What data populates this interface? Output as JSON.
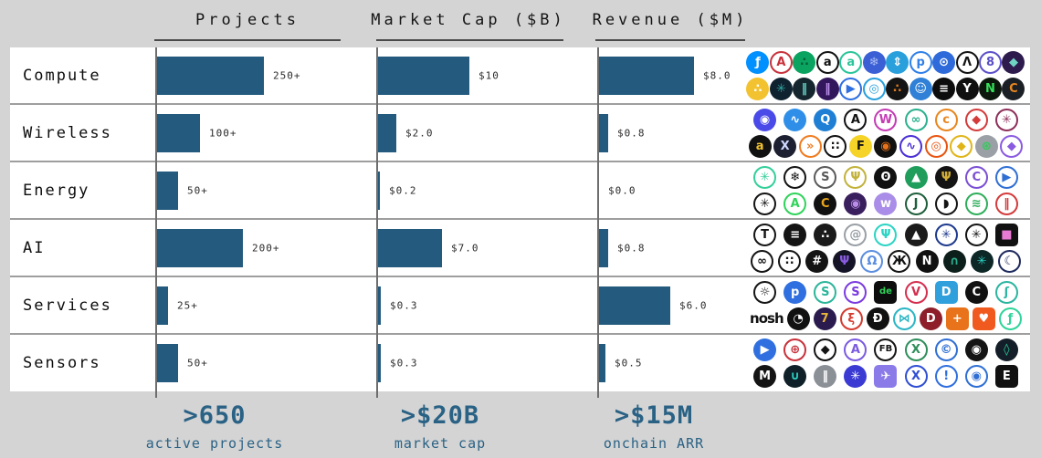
{
  "header": {
    "columns": [
      {
        "label": "Projects"
      },
      {
        "label": "Market Cap ($B)"
      },
      {
        "label": "Revenue ($M)"
      }
    ]
  },
  "chart_data": {
    "type": "bar",
    "orientation": "horizontal",
    "categories": [
      "Compute",
      "Wireless",
      "Energy",
      "AI",
      "Services",
      "Sensors"
    ],
    "series": [
      {
        "name": "Projects",
        "axis_max": 250,
        "values": [
          250,
          100,
          50,
          200,
          25,
          50
        ],
        "value_labels": [
          "250+",
          "100+",
          "50+",
          "200+",
          "25+",
          "50+"
        ]
      },
      {
        "name": "Market Cap ($B)",
        "axis_max": 10,
        "values": [
          10,
          2.0,
          0.2,
          7.0,
          0.3,
          0.3
        ],
        "value_labels": [
          "$10",
          "$2.0",
          "$0.2",
          "$7.0",
          "$0.3",
          "$0.3"
        ]
      },
      {
        "name": "Revenue ($M)",
        "axis_max": 8,
        "values": [
          8.0,
          0.8,
          0.0,
          0.8,
          6.0,
          0.5
        ],
        "value_labels": [
          "$8.0",
          "$0.8",
          "$0.0",
          "$0.8",
          "$6.0",
          "$0.5"
        ]
      }
    ],
    "legend": "none",
    "grid": "column-axis-lines"
  },
  "footer": {
    "stats": [
      {
        "value": ">650",
        "label": "active projects"
      },
      {
        "value": ">$20B",
        "label": "market cap"
      },
      {
        "value": ">$15M",
        "label": "onchain ARR"
      }
    ]
  },
  "colors": {
    "background": "#d4d4d4",
    "row_background": "#ffffff",
    "bar_fill": "#235a7d",
    "stat_text": "#2a6285",
    "header_text": "#141414",
    "grid_line": "#6e6e6e",
    "row_separator": "#9e9e9e"
  },
  "logos": {
    "Compute": [
      [
        {
          "n": "filecoin",
          "g": "ƒ",
          "b": "#0090ff",
          "f": "#ffffff"
        },
        {
          "n": "akash",
          "g": "A",
          "b": "#ffffff",
          "f": "#c8313a"
        },
        {
          "n": "dot-grid-green",
          "g": "∴",
          "b": "#0ba360",
          "f": "#065c38"
        },
        {
          "n": "arweave",
          "g": "a",
          "b": "#ffffff",
          "f": "#111111"
        },
        {
          "n": "aleph",
          "g": "a",
          "b": "#ffffff",
          "f": "#29c49a"
        },
        {
          "n": "node-mesh",
          "g": "❄",
          "b": "#3b5fd4",
          "f": "#aabdf5"
        },
        {
          "n": "elevator",
          "g": "⇕",
          "b": "#29a0dc",
          "f": "#ffffff"
        },
        {
          "n": "p-network",
          "g": "p",
          "b": "#ffffff",
          "f": "#2f7fe8"
        },
        {
          "n": "hex-network",
          "g": "⊙",
          "b": "#2e6ada",
          "f": "#ffffff"
        },
        {
          "n": "lambda",
          "g": "Λ",
          "b": "#ffffff",
          "f": "#111111"
        },
        {
          "n": "golem",
          "g": "8",
          "b": "#ffffff",
          "f": "#5b4fc8"
        },
        {
          "n": "hexagon-purple",
          "g": "◆",
          "b": "#2d1b4e",
          "f": "#6fd4c4"
        }
      ],
      [
        {
          "n": "honeycomb",
          "g": "∴",
          "b": "#f2c230",
          "f": "#ffffff"
        },
        {
          "n": "teal-mandala",
          "g": "✳",
          "b": "#0f2230",
          "f": "#2da8a0"
        },
        {
          "n": "dark-pillars",
          "g": "‖",
          "b": "#16262e",
          "f": "#63cfc0"
        },
        {
          "n": "purple-columns",
          "g": "‖",
          "b": "#33175c",
          "f": "#b98de8"
        },
        {
          "n": "blue-swoosh",
          "g": "▶",
          "b": "#ffffff",
          "f": "#2f6fe0"
        },
        {
          "n": "blue-ring",
          "g": "◎",
          "b": "#ffffff",
          "f": "#29a0dc"
        },
        {
          "n": "orange-cluster",
          "g": "∴",
          "b": "#141414",
          "f": "#e07b1f"
        },
        {
          "n": "smiley",
          "g": "☺",
          "b": "#2f80d6",
          "f": "#ffffff"
        },
        {
          "n": "black-bars",
          "g": "≡",
          "b": "#0d0d0d",
          "f": "#ffffff"
        },
        {
          "n": "fox",
          "g": "Y",
          "b": "#101010",
          "f": "#ffffff"
        },
        {
          "n": "green-n",
          "g": "N",
          "b": "#0d180d",
          "f": "#35e05a"
        },
        {
          "n": "orange-c",
          "g": "C",
          "b": "#1b1f26",
          "f": "#e8861f"
        }
      ]
    ],
    "Wireless": [
      [
        {
          "n": "helium",
          "g": "◉",
          "b": "#4a4ae8",
          "f": "#ffffff"
        },
        {
          "n": "wifi-blue",
          "g": "∿",
          "b": "#2f8fe8",
          "f": "#ffffff"
        },
        {
          "n": "q-ring",
          "g": "Q",
          "b": "#1f7fd4",
          "f": "#ffffff"
        },
        {
          "n": "black-a",
          "g": "A",
          "b": "#ffffff",
          "f": "#111111"
        },
        {
          "n": "gradient-w",
          "g": "W",
          "b": "#ffffff",
          "f": "#c43bb4"
        },
        {
          "n": "teal-loops",
          "g": "∞",
          "b": "#ffffff",
          "f": "#2bb08e"
        },
        {
          "n": "wifi-orange-c",
          "g": "c",
          "b": "#ffffff",
          "f": "#e8861f"
        },
        {
          "n": "color-cubes",
          "g": "◆",
          "b": "#ffffff",
          "f": "#d43b3b"
        },
        {
          "n": "maroon-weave",
          "g": "✳",
          "b": "#ffffff",
          "f": "#8e2f5a"
        }
      ],
      [
        {
          "n": "paren-a",
          "g": "a",
          "b": "#111111",
          "f": "#f2c230"
        },
        {
          "n": "x-dark",
          "g": "X",
          "b": "#1d2030",
          "f": "#cfd8ff"
        },
        {
          "n": "orange-chevrons",
          "g": "»",
          "b": "#ffffff",
          "f": "#f07b1f"
        },
        {
          "n": "dot-matrix",
          "g": "∷",
          "b": "#ffffff",
          "f": "#111111"
        },
        {
          "n": "f-yellow",
          "g": "F",
          "b": "#f5d327",
          "f": "#111111"
        },
        {
          "n": "disc-orange",
          "g": "◉",
          "b": "#111111",
          "f": "#e8731a"
        },
        {
          "n": "purple-beacon",
          "g": "∿",
          "b": "#ffffff",
          "f": "#4a2fd4"
        },
        {
          "n": "orange-spiral",
          "g": "◎",
          "b": "#ffffff",
          "f": "#e8540f"
        },
        {
          "n": "gold-diamond",
          "g": "◆",
          "b": "#ffffff",
          "f": "#e0b51a"
        },
        {
          "n": "hex-shield",
          "g": "⊛",
          "b": "#9aa0a6",
          "f": "#35c85a"
        },
        {
          "n": "purple-cube",
          "g": "◆",
          "b": "#ffffff",
          "f": "#8a5be0"
        }
      ]
    ],
    "Energy": [
      [
        {
          "n": "green-bloom",
          "g": "✳",
          "b": "#ffffff",
          "f": "#35cf9a"
        },
        {
          "n": "black-mandala",
          "g": "❄",
          "b": "#ffffff",
          "f": "#141414"
        },
        {
          "n": "s-coin",
          "g": "S",
          "b": "#ffffff",
          "f": "#5a5a5a"
        },
        {
          "n": "tree-ring",
          "g": "Ψ",
          "b": "#ffffff",
          "f": "#c2b23b"
        },
        {
          "n": "power-button",
          "g": "ʘ",
          "b": "#111111",
          "f": "#ffffff"
        },
        {
          "n": "green-peak",
          "g": "▲",
          "b": "#1e9e5a",
          "f": "#ffffff"
        },
        {
          "n": "gold-sprout",
          "g": "Ψ",
          "b": "#141414",
          "f": "#d4af37"
        },
        {
          "n": "purple-c",
          "g": "C",
          "b": "#ffffff",
          "f": "#7a4fd4"
        },
        {
          "n": "blue-bird",
          "g": "▶",
          "b": "#ffffff",
          "f": "#2f6fd4"
        }
      ],
      [
        {
          "n": "black-asterisk",
          "g": "✳",
          "b": "#ffffff",
          "f": "#141414"
        },
        {
          "n": "green-a",
          "g": "A",
          "b": "#ffffff",
          "f": "#2fd45a"
        },
        {
          "n": "spectrum-c",
          "g": "C",
          "b": "#111111",
          "f": "#e8a51a"
        },
        {
          "n": "violet-orb",
          "g": "◉",
          "b": "#3a1f5e",
          "f": "#b98de8"
        },
        {
          "n": "lilac-w",
          "g": "w",
          "b": "#a98de8",
          "f": "#ffffff"
        },
        {
          "n": "green-j",
          "g": "J",
          "b": "#ffffff",
          "f": "#1e5e3a"
        },
        {
          "n": "toucan",
          "g": "◗",
          "b": "#ffffff",
          "f": "#141414"
        },
        {
          "n": "green-lattice",
          "g": "≋",
          "b": "#ffffff",
          "f": "#2fae5a"
        },
        {
          "n": "red-waveform",
          "g": "‖",
          "b": "#ffffff",
          "f": "#d43b3b"
        }
      ]
    ],
    "AI": [
      [
        {
          "n": "t-serif",
          "g": "T",
          "b": "#ffffff",
          "f": "#141414"
        },
        {
          "n": "hex-stack",
          "g": "≡",
          "b": "#141414",
          "f": "#ffffff"
        },
        {
          "n": "dot-sphere",
          "g": "∴",
          "b": "#1b1b1b",
          "f": "#ffffff"
        },
        {
          "n": "gray-swirl",
          "g": "@",
          "b": "#ffffff",
          "f": "#9aa0a6"
        },
        {
          "n": "teal-brain",
          "g": "Ψ",
          "b": "#ffffff",
          "f": "#2bd4c4"
        },
        {
          "n": "hex-ascend",
          "g": "▲",
          "b": "#1b1b1b",
          "f": "#ffffff"
        },
        {
          "n": "weave-sphere",
          "g": "✳",
          "b": "#ffffff",
          "f": "#1e3a8e"
        },
        {
          "n": "spoke-asterisk",
          "g": "✳",
          "b": "#ffffff",
          "f": "#141414"
        },
        {
          "n": "pixel-bot",
          "g": "■",
          "b": "#111111",
          "f": "#e87bd4",
          "s": "sq"
        }
      ],
      [
        {
          "n": "endless-knot",
          "g": "∞",
          "b": "#ffffff",
          "f": "#141414"
        },
        {
          "n": "dot-diamond",
          "g": "∷",
          "b": "#ffffff",
          "f": "#141414"
        },
        {
          "n": "maze-hex",
          "g": "#",
          "b": "#141414",
          "f": "#ffffff"
        },
        {
          "n": "violet-brain",
          "g": "Ψ",
          "b": "#141426",
          "f": "#8a5be0"
        },
        {
          "n": "brain-outline",
          "g": "Ω",
          "b": "#ffffff",
          "f": "#5b8de0"
        },
        {
          "n": "wings",
          "g": "Ж",
          "b": "#ffffff",
          "f": "#141414"
        },
        {
          "n": "nous",
          "g": "N",
          "b": "#111111",
          "f": "#ffffff"
        },
        {
          "n": "green-hat",
          "g": "∩",
          "b": "#0d1f1a",
          "f": "#2bae8e"
        },
        {
          "n": "teal-shutter",
          "g": "✳",
          "b": "#0d2626",
          "f": "#2bd4c4"
        },
        {
          "n": "crescent",
          "g": "☾",
          "b": "#ffffff",
          "f": "#1e2a5e"
        }
      ]
    ],
    "Services": [
      [
        {
          "n": "sun-gear",
          "g": "☼",
          "b": "#ffffff",
          "f": "#141414"
        },
        {
          "n": "p-coin",
          "g": "p",
          "b": "#2f6fe0",
          "f": "#ffffff"
        },
        {
          "n": "chain-s",
          "g": "S",
          "b": "#ffffff",
          "f": "#2bb59a"
        },
        {
          "n": "s-ring",
          "g": "S",
          "b": "#ffffff",
          "f": "#7a3be0"
        },
        {
          "n": "de-bike",
          "g": "de",
          "b": "#0d0d0d",
          "f": "#2fd45a",
          "s": "sq"
        },
        {
          "n": "v-badge",
          "g": "V",
          "b": "#ffffff",
          "f": "#d42f4f"
        },
        {
          "n": "d-road",
          "g": "D",
          "b": "#2fa0dc",
          "f": "#ffffff",
          "s": "sq"
        },
        {
          "n": "c-dot",
          "g": "C",
          "b": "#111111",
          "f": "#ffffff"
        },
        {
          "n": "teal-node",
          "g": "ʃ",
          "b": "#ffffff",
          "f": "#2bb5a0"
        }
      ],
      [
        {
          "n": "nosh",
          "g": "nosh",
          "b": "#ffffff",
          "f": "#111111",
          "s": "text"
        },
        {
          "n": "orb-blue-dot",
          "g": "◔",
          "b": "#111111",
          "f": "#ffffff"
        },
        {
          "n": "tipz",
          "g": "7",
          "b": "#2a1a4e",
          "f": "#e8b53b"
        },
        {
          "n": "flame",
          "g": "ξ",
          "b": "#ffffff",
          "f": "#d43b2f"
        },
        {
          "n": "dash-coin",
          "g": "Đ",
          "b": "#111111",
          "f": "#ffffff"
        },
        {
          "n": "bowtie",
          "g": "⋈",
          "b": "#ffffff",
          "f": "#2bb5c4"
        },
        {
          "n": "d-crimson",
          "g": "D",
          "b": "#8e1f2a",
          "f": "#ffffff"
        },
        {
          "n": "tile-grid",
          "g": "+",
          "b": "#e8731a",
          "f": "#ffffff",
          "s": "sq"
        },
        {
          "n": "orange-heart",
          "g": "♥",
          "b": "#f05a1f",
          "f": "#ffffff",
          "s": "sq"
        },
        {
          "n": "mint-f",
          "g": "ƒ",
          "b": "#ffffff",
          "f": "#2fd49a"
        }
      ]
    ],
    "Sensors": [
      [
        {
          "n": "blue-bird-badge",
          "g": "▶",
          "b": "#2f6fe0",
          "f": "#ffffff"
        },
        {
          "n": "red-globe",
          "g": "⊕",
          "b": "#ffffff",
          "f": "#c8313a"
        },
        {
          "n": "black-prism",
          "g": "◆",
          "b": "#ffffff",
          "f": "#141414"
        },
        {
          "n": "compass-a",
          "g": "A",
          "b": "#ffffff",
          "f": "#7a5be0"
        },
        {
          "n": "fb-wheel",
          "g": "FB",
          "b": "#ffffff",
          "f": "#141414"
        },
        {
          "n": "green-x",
          "g": "X",
          "b": "#ffffff",
          "f": "#2f8e5a"
        },
        {
          "n": "c-ring",
          "g": "©",
          "b": "#ffffff",
          "f": "#2f6fd4"
        },
        {
          "n": "wheel-badge",
          "g": "◉",
          "b": "#141414",
          "f": "#ffffff"
        },
        {
          "n": "teal-flame-a",
          "g": "◊",
          "b": "#141e28",
          "f": "#2bd4a0"
        }
      ],
      [
        {
          "n": "m-disc",
          "g": "M",
          "b": "#141414",
          "f": "#ffffff"
        },
        {
          "n": "shield",
          "g": "∪",
          "b": "#102028",
          "f": "#2bd4c4"
        },
        {
          "n": "sound-disc",
          "g": "‖",
          "b": "#8a9096",
          "f": "#ffffff"
        },
        {
          "n": "node-web",
          "g": "✳",
          "b": "#3b3bd4",
          "f": "#ffffff"
        },
        {
          "n": "wingbits",
          "g": "✈",
          "b": "#8a7be8",
          "f": "#ffffff",
          "s": "sq"
        },
        {
          "n": "xv-mark",
          "g": "X",
          "b": "#ffffff",
          "f": "#2f4fd4"
        },
        {
          "n": "exclaim",
          "g": "!",
          "b": "#ffffff",
          "f": "#2f6fe0"
        },
        {
          "n": "eye",
          "g": "◉",
          "b": "#ffffff",
          "f": "#2f6fd4"
        },
        {
          "n": "e-panel",
          "g": "E",
          "b": "#111111",
          "f": "#ffffff",
          "s": "sq"
        }
      ]
    ]
  }
}
